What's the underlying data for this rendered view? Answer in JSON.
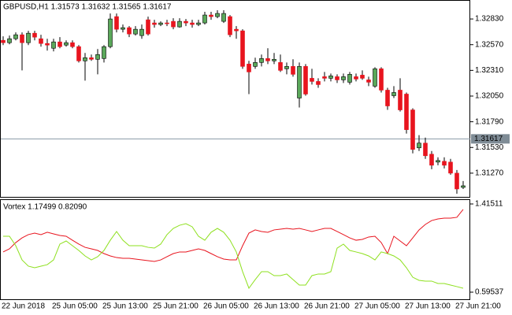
{
  "chart_data": [
    {
      "type": "candlestick",
      "title": "GBPUSD,H1  1.31573 1.31632 1.31565 1.31617",
      "categories": [
        "22 Jun 2018",
        null,
        null,
        null,
        null,
        null,
        null,
        null,
        "25 Jun 05:00",
        null,
        null,
        null,
        null,
        null,
        null,
        null,
        "25 Jun 13:00",
        null,
        null,
        null,
        null,
        null,
        null,
        null,
        "25 Jun 21:00",
        null,
        null,
        null,
        null,
        null,
        null,
        null,
        "26 Jun 05:00",
        null,
        null,
        null,
        null,
        null,
        null,
        null,
        "26 Jun 13:00",
        null,
        null,
        null,
        null,
        null,
        null,
        null,
        "26 Jun 21:00",
        null,
        null,
        null,
        null,
        null,
        null,
        null,
        "27 Jun 05:00",
        null,
        null,
        null,
        null,
        null,
        null,
        null,
        "27 Jun 13:00",
        null,
        null,
        null,
        null,
        null,
        null,
        null,
        "27 Jun 21:00",
        null
      ],
      "open": [
        1.32614,
        1.3259,
        1.3263,
        1.3267,
        1.3259,
        1.32686,
        1.3263,
        1.32582,
        1.32534,
        1.32598,
        1.32566,
        1.3259,
        1.3255,
        1.32406,
        1.32438,
        1.32422,
        1.3243,
        1.3255,
        1.32854,
        1.32726,
        1.32742,
        1.32678,
        1.32662,
        1.32822,
        1.3279,
        1.32774,
        1.3279,
        1.32806,
        1.3275,
        1.32806,
        1.3279,
        1.32774,
        1.3279,
        1.3287,
        1.32854,
        1.32806,
        1.32854,
        1.32726,
        1.3271,
        1.32374,
        1.3235,
        1.3239,
        1.3243,
        1.32406,
        1.3239,
        1.32326,
        1.3235,
        1.3203,
        1.3235,
        1.3223,
        1.32198,
        1.32246,
        1.3223,
        1.32246,
        1.32214,
        1.3219,
        1.32246,
        1.32262,
        1.32214,
        1.3215,
        1.32326,
        1.3211,
        1.32054,
        1.3211,
        1.3207,
        1.3191,
        1.31526,
        1.31574,
        1.31462,
        1.31382,
        1.3139,
        1.31382,
        1.3127,
        1.31126
      ],
      "high": [
        1.32654,
        1.32662,
        1.32694,
        1.32694,
        1.3271,
        1.3271,
        1.3267,
        1.3263,
        1.3263,
        1.32646,
        1.32614,
        1.32614,
        1.32566,
        1.32486,
        1.3247,
        1.32526,
        1.32566,
        1.32886,
        1.32886,
        1.32774,
        1.32758,
        1.32758,
        1.32774,
        1.32854,
        1.32822,
        1.32806,
        1.32822,
        1.32838,
        1.32838,
        1.3283,
        1.32822,
        1.32822,
        1.32902,
        1.32902,
        1.32918,
        1.32918,
        1.3287,
        1.32758,
        1.32726,
        1.32406,
        1.32438,
        1.3247,
        1.32534,
        1.32486,
        1.3247,
        1.3239,
        1.32422,
        1.3239,
        1.32374,
        1.32326,
        1.3223,
        1.32294,
        1.32278,
        1.3227,
        1.32278,
        1.32294,
        1.32278,
        1.3231,
        1.32246,
        1.32342,
        1.32342,
        1.32134,
        1.3215,
        1.3223,
        1.32086,
        1.31926,
        1.31654,
        1.3163,
        1.31494,
        1.3143,
        1.3143,
        1.31414,
        1.31302,
        1.3119
      ],
      "low": [
        1.32566,
        1.32574,
        1.32614,
        1.3231,
        1.32566,
        1.32614,
        1.3255,
        1.3251,
        1.32502,
        1.32534,
        1.3255,
        1.32534,
        1.3239,
        1.32206,
        1.32406,
        1.3227,
        1.3239,
        1.32534,
        1.32694,
        1.32694,
        1.32646,
        1.32662,
        1.3263,
        1.32662,
        1.32742,
        1.32758,
        1.32758,
        1.32726,
        1.32742,
        1.32758,
        1.32742,
        1.32758,
        1.32774,
        1.32822,
        1.32838,
        1.3279,
        1.32646,
        1.3263,
        1.32326,
        1.3207,
        1.32326,
        1.3235,
        1.32374,
        1.32374,
        1.32294,
        1.3227,
        1.32246,
        1.31934,
        1.32054,
        1.32166,
        1.32134,
        1.32198,
        1.32198,
        1.32182,
        1.32182,
        1.32166,
        1.32198,
        1.32214,
        1.3215,
        1.32134,
        1.32086,
        1.3191,
        1.3203,
        1.31894,
        1.3167,
        1.3147,
        1.31494,
        1.31414,
        1.3131,
        1.3135,
        1.31318,
        1.31254,
        1.31062,
        1.3111
      ],
      "close": [
        1.3259,
        1.3263,
        1.3267,
        1.3259,
        1.32686,
        1.32646,
        1.32582,
        1.32566,
        1.32598,
        1.3255,
        1.3259,
        1.3255,
        1.32406,
        1.32438,
        1.32422,
        1.3247,
        1.3255,
        1.3283,
        1.32726,
        1.32742,
        1.32678,
        1.32726,
        1.32726,
        1.32678,
        1.32774,
        1.3279,
        1.32782,
        1.3275,
        1.32806,
        1.3279,
        1.32774,
        1.3279,
        1.3287,
        1.32854,
        1.32886,
        1.32886,
        1.3267,
        1.3271,
        1.3235,
        1.32294,
        1.3239,
        1.3243,
        1.32406,
        1.32422,
        1.3231,
        1.3235,
        1.3227,
        1.3235,
        1.3207,
        1.32198,
        1.32166,
        1.3223,
        1.32254,
        1.32214,
        1.32246,
        1.3227,
        1.32222,
        1.3223,
        1.3219,
        1.32326,
        1.3211,
        1.3195,
        1.32086,
        1.3191,
        1.3171,
        1.3151,
        1.31574,
        1.31446,
        1.3135,
        1.31398,
        1.3135,
        1.3127,
        1.3111,
        1.31142
      ],
      "bull_color": "#5aa85a",
      "bear_color": "#e8141e",
      "ylim": [
        1.3103,
        1.33014
      ],
      "yticks": [
        {
          "value": 1.3283,
          "label": "1.32830"
        },
        {
          "value": 1.3257,
          "label": "1.32570"
        },
        {
          "value": 1.3231,
          "label": "1.32310"
        },
        {
          "value": 1.3205,
          "label": "1.32050"
        },
        {
          "value": 1.3179,
          "label": "1.31790"
        },
        {
          "value": 1.3153,
          "label": "1.31530"
        },
        {
          "value": 1.3127,
          "label": "1.31270"
        }
      ],
      "last_price": 1.31617
    },
    {
      "type": "line",
      "title": "Vortex 1.17499 0.82090",
      "series": [
        {
          "color": "#e8141e",
          "values": [
            0.969,
            0.998,
            1.056,
            1.1,
            1.13,
            1.144,
            1.13,
            1.152,
            1.137,
            1.122,
            1.115,
            1.078,
            1.042,
            1.012,
            0.998,
            0.983,
            0.954,
            0.932,
            0.917,
            0.91,
            0.91,
            0.903,
            0.895,
            0.888,
            0.881,
            0.895,
            0.925,
            0.954,
            0.969,
            0.969,
            0.983,
            0.998,
            0.983,
            0.954,
            0.925,
            0.903,
            0.895,
            0.895,
            1.027,
            1.144,
            1.174,
            1.159,
            1.152,
            1.174,
            1.181,
            1.188,
            1.181,
            1.188,
            1.174,
            1.159,
            1.174,
            1.188,
            1.188,
            1.159,
            1.13,
            1.1,
            1.078,
            1.086,
            1.108,
            1.115,
            1.056,
            0.954,
            1.115,
            1.071,
            1.027,
            1.1,
            1.174,
            1.225,
            1.261,
            1.276,
            1.283,
            1.283,
            1.291,
            1.364
          ]
        },
        {
          "color": "#8ee01e",
          "values": [
            1.115,
            1.115,
            1.027,
            0.895,
            0.837,
            0.822,
            0.837,
            0.851,
            0.895,
            1.042,
            1.071,
            1.027,
            0.983,
            0.932,
            0.895,
            0.925,
            0.983,
            1.078,
            1.159,
            1.078,
            1.027,
            1.027,
            1.027,
            1.012,
            1.005,
            1.042,
            1.13,
            1.188,
            1.217,
            1.232,
            1.203,
            1.115,
            1.078,
            1.152,
            1.188,
            1.152,
            1.078,
            0.969,
            0.786,
            0.632,
            0.712,
            0.786,
            0.786,
            0.749,
            0.749,
            0.764,
            0.712,
            0.661,
            0.661,
            0.749,
            0.764,
            0.764,
            0.786,
            1.005,
            1.042,
            0.983,
            0.969,
            0.954,
            0.932,
            0.895,
            0.969,
            0.954,
            0.932,
            0.895,
            0.822,
            0.734,
            0.705,
            0.698,
            0.698,
            0.676,
            0.676,
            0.661,
            0.647,
            0.632
          ]
        }
      ],
      "ylim": [
        0.5294,
        1.459
      ],
      "yticks": [
        1.41511,
        0.59537
      ]
    }
  ]
}
